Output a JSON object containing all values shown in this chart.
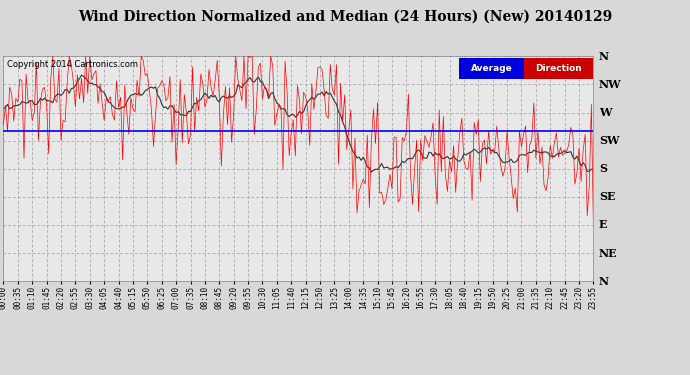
{
  "title": "Wind Direction Normalized and Median (24 Hours) (New) 20140129",
  "copyright": "Copyright 2014 Cartronics.com",
  "ytick_labels": [
    "N",
    "NW",
    "W",
    "SW",
    "S",
    "SE",
    "E",
    "NE",
    "N"
  ],
  "ytick_values": [
    0,
    45,
    90,
    135,
    180,
    225,
    270,
    315,
    360
  ],
  "ymin": 0,
  "ymax": 360,
  "bg_color": "#d8d8d8",
  "plot_bg_color": "#e8e8e8",
  "grid_color": "#999999",
  "data_color": "#ff0000",
  "median_color": "#333333",
  "average_color": "#0000ff",
  "average_value": 120,
  "legend_average_bg": "#0000dd",
  "legend_direction_bg": "#cc0000",
  "title_fontsize": 10,
  "num_points": 288,
  "seed": 12345
}
